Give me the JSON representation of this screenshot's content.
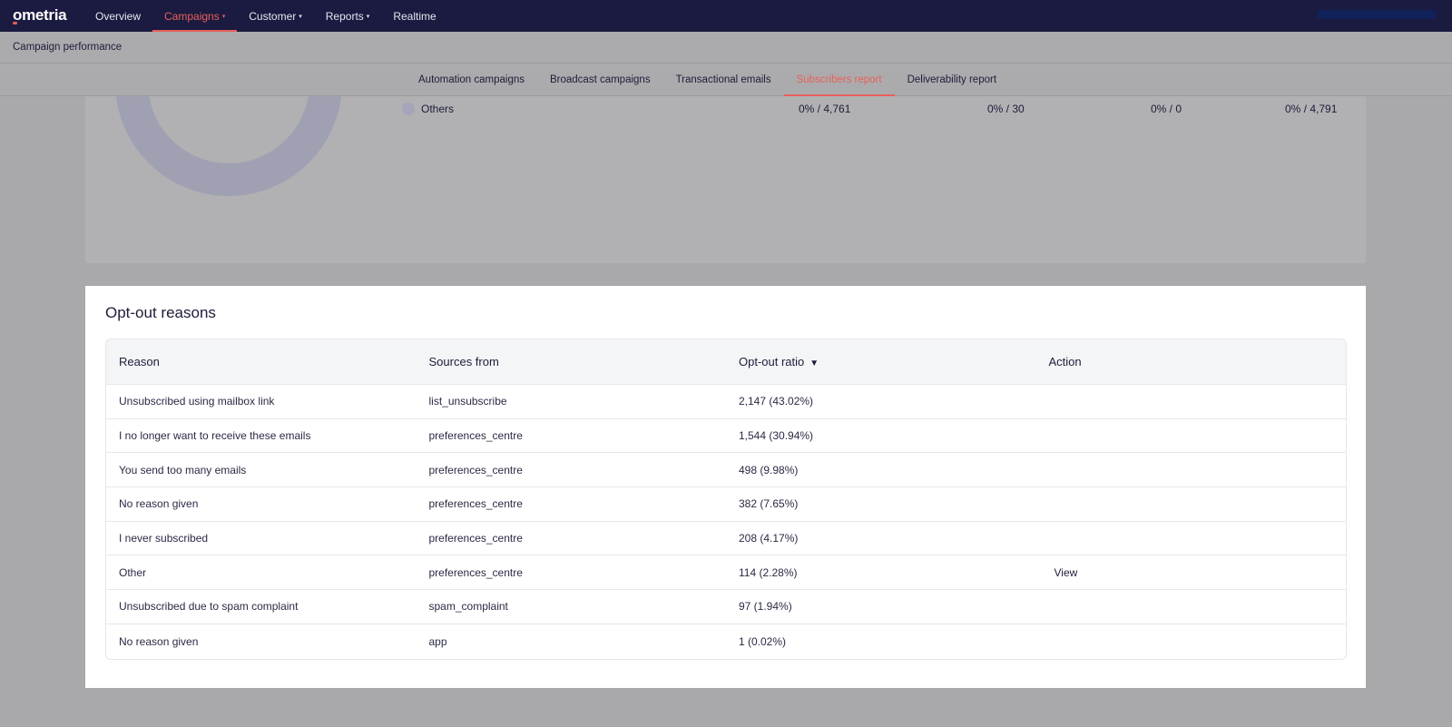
{
  "brand": {
    "logo_text": "ometria"
  },
  "nav": {
    "items": [
      {
        "label": "Overview",
        "dropdown": false,
        "active": false
      },
      {
        "label": "Campaigns",
        "dropdown": true,
        "active": true
      },
      {
        "label": "Customer",
        "dropdown": true,
        "active": false
      },
      {
        "label": "Reports",
        "dropdown": true,
        "active": false
      },
      {
        "label": "Realtime",
        "dropdown": false,
        "active": false
      }
    ],
    "caret": "▾"
  },
  "subheader": {
    "title": "Campaign performance"
  },
  "tabs": [
    {
      "label": "Automation campaigns",
      "active": false
    },
    {
      "label": "Broadcast campaigns",
      "active": false
    },
    {
      "label": "Transactional emails",
      "active": false
    },
    {
      "label": "Subscribers report",
      "active": true
    },
    {
      "label": "Deliverability report",
      "active": false
    }
  ],
  "upper": {
    "legend_label": "Others",
    "values": [
      "0% / 4,761",
      "0% / 30",
      "0% / 0",
      "0% / 4,791"
    ]
  },
  "optout": {
    "title": "Opt-out reasons",
    "columns": {
      "reason": "Reason",
      "sources": "Sources from",
      "ratio": "Opt-out ratio",
      "action": "Action"
    },
    "sort_icon": "▼",
    "rows": [
      {
        "reason": "Unsubscribed using mailbox link",
        "source": "list_unsubscribe",
        "ratio": "2,147 (43.02%)",
        "action": ""
      },
      {
        "reason": "I no longer want to receive these emails",
        "source": "preferences_centre",
        "ratio": "1,544 (30.94%)",
        "action": ""
      },
      {
        "reason": "You send too many emails",
        "source": "preferences_centre",
        "ratio": "498 (9.98%)",
        "action": ""
      },
      {
        "reason": "No reason given",
        "source": "preferences_centre",
        "ratio": "382 (7.65%)",
        "action": ""
      },
      {
        "reason": "I never subscribed",
        "source": "preferences_centre",
        "ratio": "208 (4.17%)",
        "action": ""
      },
      {
        "reason": "Other",
        "source": "preferences_centre",
        "ratio": "114 (2.28%)",
        "action": "View"
      },
      {
        "reason": "Unsubscribed due to spam complaint",
        "source": "spam_complaint",
        "ratio": "97 (1.94%)",
        "action": ""
      },
      {
        "reason": "No reason given",
        "source": "app",
        "ratio": "1 (0.02%)",
        "action": ""
      }
    ]
  },
  "colors": {
    "nav_bg": "#1b1a40",
    "accent": "#e8605a",
    "overlay": "#a9a9ab"
  }
}
